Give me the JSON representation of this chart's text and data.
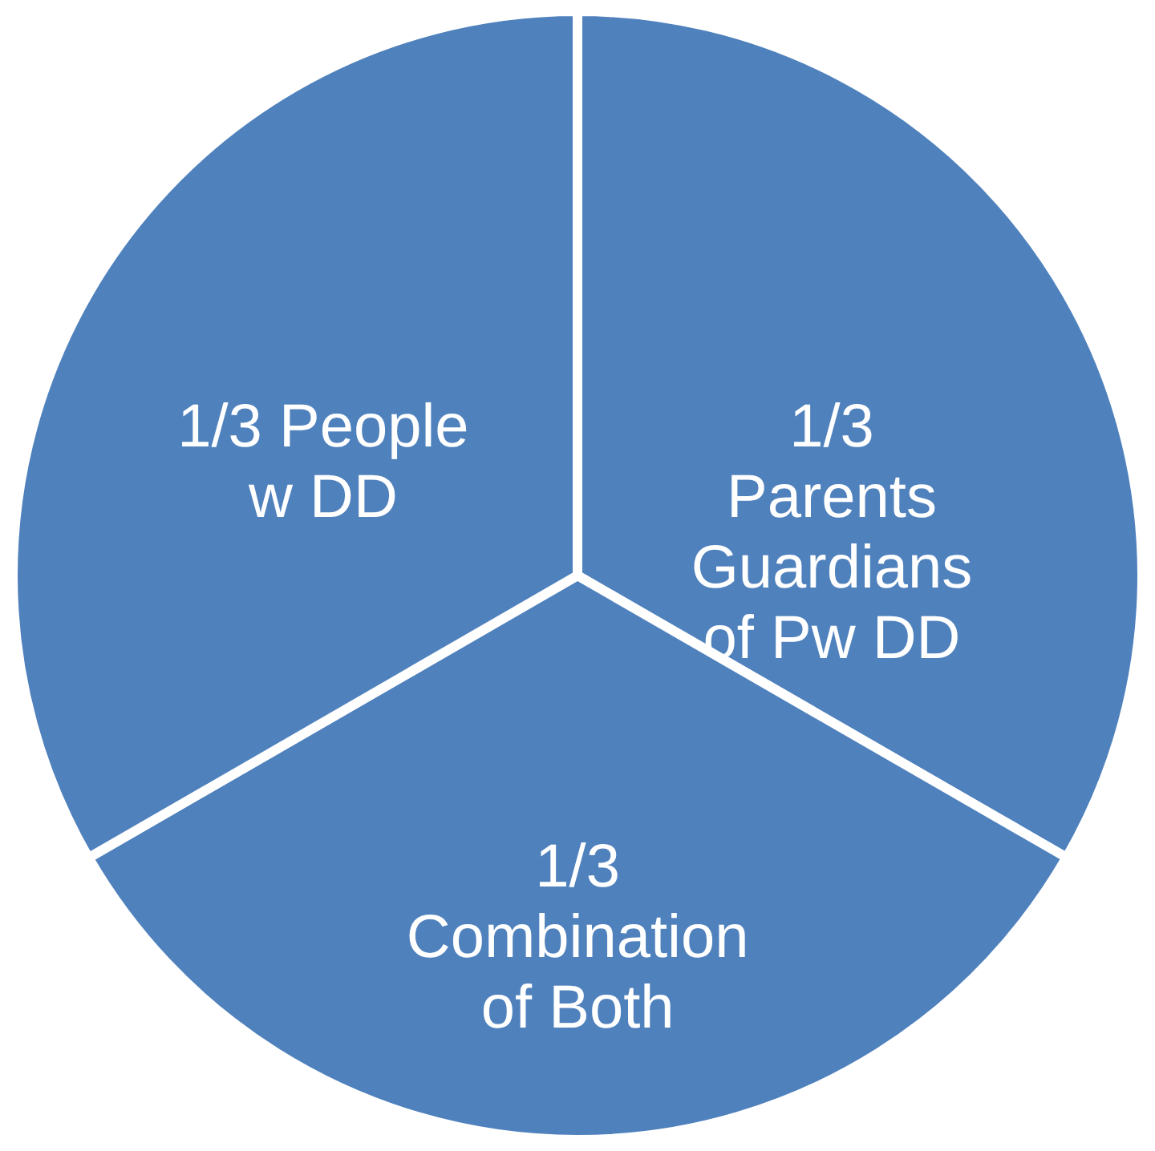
{
  "chart_data": {
    "type": "pie",
    "categories": [
      "1/3\nParents\nGuardians\nof Pw DD",
      "1/3\nCombination\nof Both",
      "1/3 People\nw DD"
    ],
    "values": [
      33.33,
      33.33,
      33.34
    ],
    "colors": [
      "#4f81bd",
      "#4f81bd",
      "#4f81bd"
    ]
  }
}
